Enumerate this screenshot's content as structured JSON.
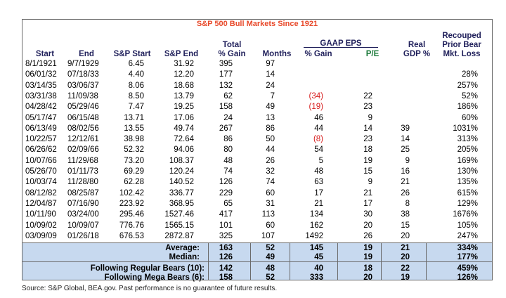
{
  "chart_data": {
    "type": "table",
    "title": "S&P 500 Bull Markets Since 1921",
    "group_header": "GAAP EPS",
    "columns": [
      "Start",
      "End",
      "S&P Start",
      "S&P End",
      "Total % Gain",
      "Months",
      "% Gain",
      "P/E",
      "Real GDP %",
      "Recouped Prior Bear Mkt. Loss"
    ],
    "column_header_lines": [
      [
        "Start"
      ],
      [
        "End"
      ],
      [
        "S&P Start"
      ],
      [
        "S&P End"
      ],
      [
        "Total",
        "% Gain"
      ],
      [
        "Months"
      ],
      [
        "% Gain"
      ],
      [
        "P/E"
      ],
      [
        "Real",
        "GDP %"
      ],
      [
        "Recouped",
        "Prior Bear",
        "Mkt. Loss"
      ]
    ],
    "rows": [
      [
        "8/1/1921",
        "9/7/1929",
        "6.45",
        "31.92",
        "395",
        "97",
        "",
        "",
        "",
        ""
      ],
      [
        "06/01/32",
        "07/18/33",
        "4.40",
        "12.20",
        "177",
        "14",
        "",
        "",
        "",
        "28%"
      ],
      [
        "03/14/35",
        "03/06/37",
        "8.06",
        "18.68",
        "132",
        "24",
        "",
        "",
        "",
        "257%"
      ],
      [
        "03/31/38",
        "11/09/38",
        "8.50",
        "13.79",
        "62",
        "7",
        "(34)",
        "22",
        "",
        "52%"
      ],
      [
        "04/28/42",
        "05/29/46",
        "7.47",
        "19.25",
        "158",
        "49",
        "(19)",
        "23",
        "",
        "186%"
      ],
      [
        "05/17/47",
        "06/15/48",
        "13.71",
        "17.06",
        "24",
        "13",
        "46",
        "9",
        "",
        "60%"
      ],
      [
        "06/13/49",
        "08/02/56",
        "13.55",
        "49.74",
        "267",
        "86",
        "44",
        "14",
        "39",
        "1031%"
      ],
      [
        "10/22/57",
        "12/12/61",
        "38.98",
        "72.64",
        "86",
        "50",
        "(8)",
        "23",
        "14",
        "313%"
      ],
      [
        "06/26/62",
        "02/09/66",
        "52.32",
        "94.06",
        "80",
        "44",
        "54",
        "18",
        "25",
        "205%"
      ],
      [
        "10/07/66",
        "11/29/68",
        "73.20",
        "108.37",
        "48",
        "26",
        "5",
        "19",
        "9",
        "169%"
      ],
      [
        "05/26/70",
        "01/11/73",
        "69.29",
        "120.24",
        "74",
        "32",
        "48",
        "15",
        "16",
        "130%"
      ],
      [
        "10/03/74",
        "11/28/80",
        "62.28",
        "140.52",
        "126",
        "74",
        "63",
        "9",
        "21",
        "135%"
      ],
      [
        "08/12/82",
        "08/25/87",
        "102.42",
        "336.77",
        "229",
        "60",
        "17",
        "21",
        "26",
        "615%"
      ],
      [
        "12/04/87",
        "07/16/90",
        "223.92",
        "368.95",
        "65",
        "31",
        "21",
        "17",
        "8",
        "129%"
      ],
      [
        "10/11/90",
        "03/24/00",
        "295.46",
        "1527.46",
        "417",
        "113",
        "134",
        "30",
        "38",
        "1676%"
      ],
      [
        "10/09/02",
        "10/09/07",
        "776.76",
        "1565.15",
        "101",
        "60",
        "162",
        "20",
        "15",
        "105%"
      ],
      [
        "03/09/09",
        "01/26/18",
        "676.53",
        "2872.87",
        "325",
        "107",
        "1492",
        "26",
        "20",
        "247%"
      ]
    ],
    "summary": [
      {
        "label": "Average:",
        "values": [
          "163",
          "52",
          "145",
          "19",
          "21",
          "334%"
        ]
      },
      {
        "label": "Median:",
        "values": [
          "126",
          "49",
          "45",
          "19",
          "20",
          "177%"
        ]
      },
      {
        "label": "Following Regular Bears (10):",
        "values": [
          "142",
          "48",
          "40",
          "18",
          "22",
          "459%"
        ]
      },
      {
        "label": "Following Mega Bears (6):",
        "values": [
          "158",
          "52",
          "333",
          "20",
          "19",
          "126%"
        ]
      }
    ],
    "negative_color": "#d71e1e",
    "title_color": "#e8492a",
    "header_color": "#1f1f5a",
    "summary_fill": "#c7d9ef"
  },
  "source": "Source: S&P Global, BEA.gov. Past performance is no guarantee of future results."
}
